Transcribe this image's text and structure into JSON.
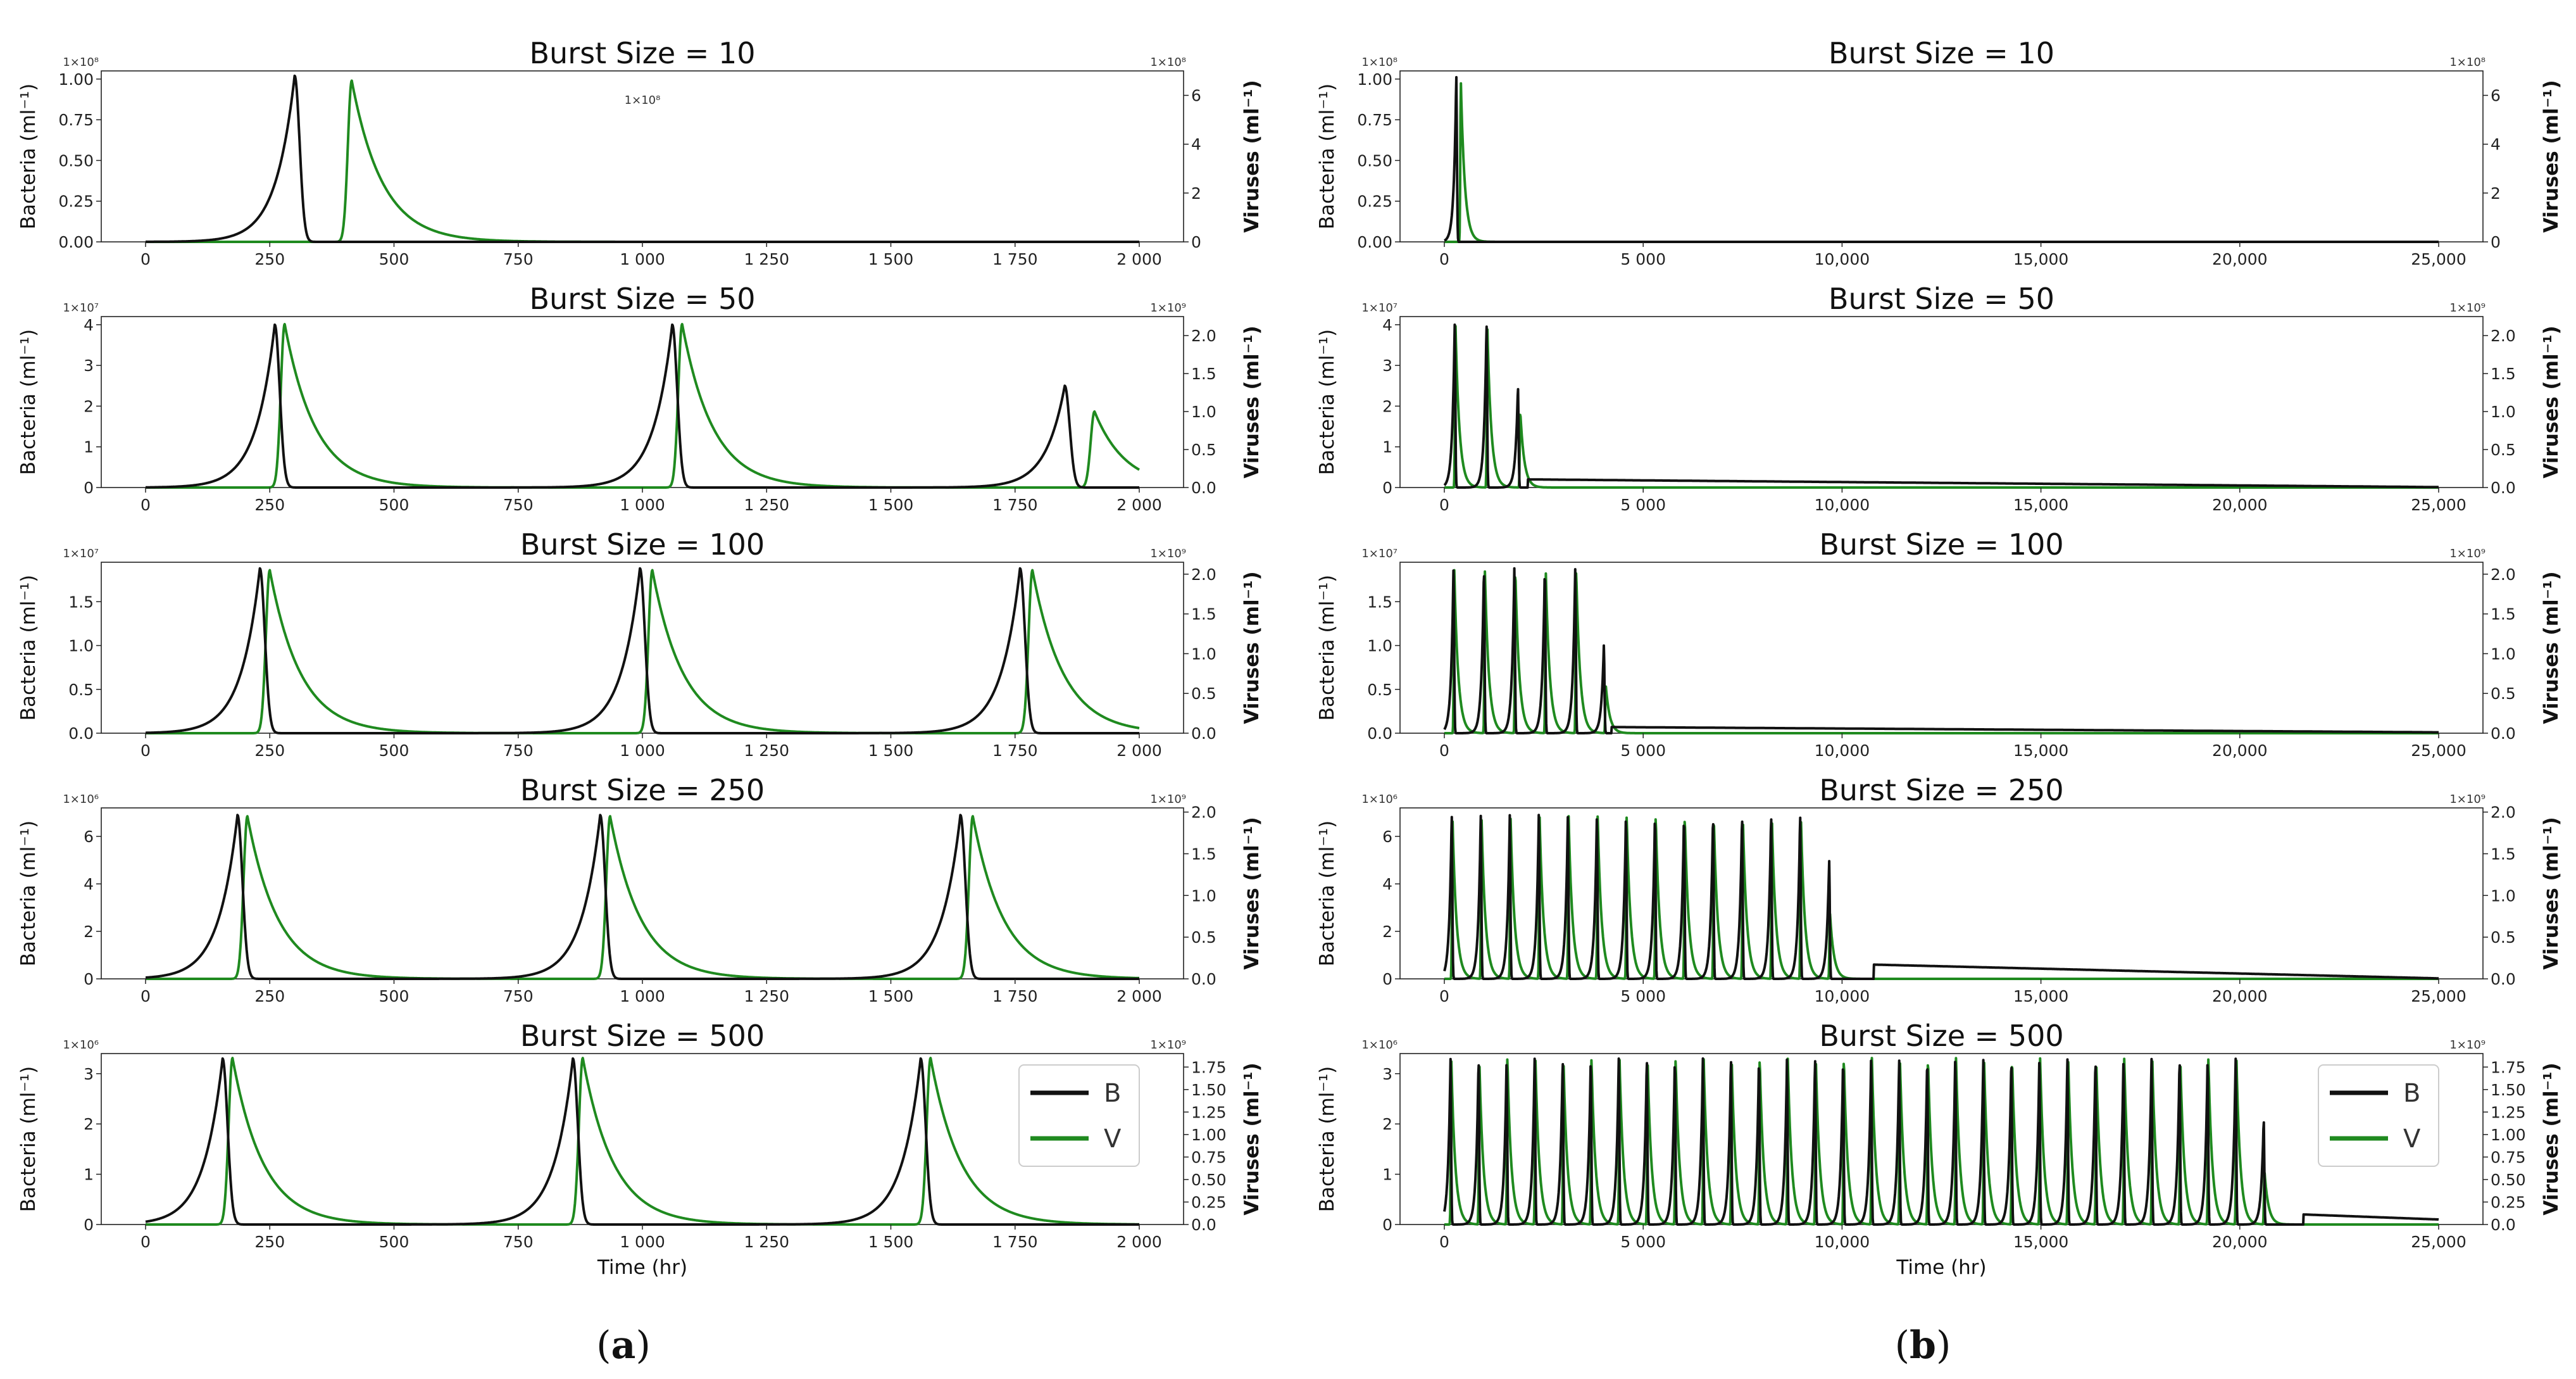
{
  "colors": {
    "bacteria": "#111111",
    "virus": "#1f8a1f"
  },
  "panels": [
    {
      "label_left": "(",
      "label_letter": "a",
      "label_right": ")",
      "xlabel": "Time (hr)"
    },
    {
      "label_left": "(",
      "label_letter": "b",
      "label_right": ")",
      "xlabel": "Time (hr)"
    }
  ],
  "legend": {
    "b_label": "B",
    "v_label": "V"
  },
  "chart_data": [
    {
      "type": "line",
      "panel": "a",
      "title": "Burst Size = 10",
      "xlabel": "",
      "ylabel": "Bacteria (ml⁻¹)",
      "ylabel_right": "Viruses (ml⁻¹)",
      "xlim": [
        0,
        2000
      ],
      "ylim": [
        0,
        1.05
      ],
      "ylim_right": [
        0,
        7
      ],
      "y_exp": "1×10⁸",
      "y2_exp": "1×10⁸",
      "annotation": "1×10⁸",
      "xticks": [
        "0",
        "250",
        "500",
        "750",
        "1 000",
        "1 250",
        "1 500",
        "1 750",
        "2 000"
      ],
      "xtick_values": [
        0,
        250,
        500,
        750,
        1000,
        1250,
        1500,
        1750,
        2000
      ],
      "yticks": [
        "0.00",
        "0.25",
        "0.50",
        "0.75",
        "1.00"
      ],
      "ytick_values": [
        0,
        0.25,
        0.5,
        0.75,
        1.0
      ],
      "y2ticks": [
        "0",
        "2",
        "4",
        "6"
      ],
      "y2tick_values": [
        0,
        2,
        4,
        6
      ],
      "series": [
        {
          "name": "B",
          "peaks": [
            {
              "t": 300,
              "h": 1.02
            }
          ]
        },
        {
          "name": "V",
          "peaks": [
            {
              "t": 415,
              "h": 6.6
            }
          ]
        }
      ]
    },
    {
      "type": "line",
      "panel": "a",
      "title": "Burst Size = 50",
      "ylabel": "Bacteria (ml⁻¹)",
      "ylabel_right": "Viruses (ml⁻¹)",
      "xlim": [
        0,
        2000
      ],
      "ylim": [
        0,
        4.2
      ],
      "ylim_right": [
        0,
        2.25
      ],
      "y_exp": "1×10⁷",
      "y2_exp": "1×10⁹",
      "xticks": [
        "0",
        "250",
        "500",
        "750",
        "1 000",
        "1 250",
        "1 500",
        "1 750",
        "2 000"
      ],
      "xtick_values": [
        0,
        250,
        500,
        750,
        1000,
        1250,
        1500,
        1750,
        2000
      ],
      "yticks": [
        "0",
        "1",
        "2",
        "3",
        "4"
      ],
      "ytick_values": [
        0,
        1,
        2,
        3,
        4
      ],
      "y2ticks": [
        "0.0",
        "0.5",
        "1.0",
        "1.5",
        "2.0"
      ],
      "y2tick_values": [
        0,
        0.5,
        1.0,
        1.5,
        2.0
      ],
      "series": [
        {
          "name": "B",
          "peaks": [
            {
              "t": 260,
              "h": 4.0
            },
            {
              "t": 1060,
              "h": 4.0
            },
            {
              "t": 1850,
              "h": 2.5
            }
          ]
        },
        {
          "name": "V",
          "peaks": [
            {
              "t": 280,
              "h": 2.15
            },
            {
              "t": 1080,
              "h": 2.15
            },
            {
              "t": 1910,
              "h": 1.0
            }
          ]
        }
      ]
    },
    {
      "type": "line",
      "panel": "a",
      "title": "Burst Size = 100",
      "ylabel": "Bacteria (ml⁻¹)",
      "ylabel_right": "Viruses (ml⁻¹)",
      "xlim": [
        0,
        2000
      ],
      "ylim": [
        0,
        1.95
      ],
      "ylim_right": [
        0,
        2.15
      ],
      "y_exp": "1×10⁷",
      "y2_exp": "1×10⁹",
      "xticks": [
        "0",
        "250",
        "500",
        "750",
        "1 000",
        "1 250",
        "1 500",
        "1 750",
        "2 000"
      ],
      "xtick_values": [
        0,
        250,
        500,
        750,
        1000,
        1250,
        1500,
        1750,
        2000
      ],
      "yticks": [
        "0.0",
        "0.5",
        "1.0",
        "1.5"
      ],
      "ytick_values": [
        0,
        0.5,
        1.0,
        1.5
      ],
      "y2ticks": [
        "0.0",
        "0.5",
        "1.0",
        "1.5",
        "2.0"
      ],
      "y2tick_values": [
        0,
        0.5,
        1.0,
        1.5,
        2.0
      ],
      "series": [
        {
          "name": "B",
          "peaks": [
            {
              "t": 230,
              "h": 1.88
            },
            {
              "t": 995,
              "h": 1.88
            },
            {
              "t": 1760,
              "h": 1.88
            }
          ]
        },
        {
          "name": "V",
          "peaks": [
            {
              "t": 250,
              "h": 2.05
            },
            {
              "t": 1020,
              "h": 2.05
            },
            {
              "t": 1785,
              "h": 2.05
            }
          ]
        }
      ]
    },
    {
      "type": "line",
      "panel": "a",
      "title": "Burst Size = 250",
      "ylabel": "Bacteria (ml⁻¹)",
      "ylabel_right": "Viruses (ml⁻¹)",
      "xlim": [
        0,
        2000
      ],
      "ylim": [
        0,
        7.2
      ],
      "ylim_right": [
        0,
        2.05
      ],
      "y_exp": "1×10⁶",
      "y2_exp": "1×10⁹",
      "xticks": [
        "0",
        "250",
        "500",
        "750",
        "1 000",
        "1 250",
        "1 500",
        "1 750",
        "2 000"
      ],
      "xtick_values": [
        0,
        250,
        500,
        750,
        1000,
        1250,
        1500,
        1750,
        2000
      ],
      "yticks": [
        "0",
        "2",
        "4",
        "6"
      ],
      "ytick_values": [
        0,
        2,
        4,
        6
      ],
      "y2ticks": [
        "0.0",
        "0.5",
        "1.0",
        "1.5",
        "2.0"
      ],
      "y2tick_values": [
        0,
        0.5,
        1.0,
        1.5,
        2.0
      ],
      "series": [
        {
          "name": "B",
          "peaks": [
            {
              "t": 185,
              "h": 6.9
            },
            {
              "t": 915,
              "h": 6.9
            },
            {
              "t": 1640,
              "h": 6.9
            }
          ]
        },
        {
          "name": "V",
          "peaks": [
            {
              "t": 205,
              "h": 1.95
            },
            {
              "t": 935,
              "h": 1.95
            },
            {
              "t": 1665,
              "h": 1.95
            }
          ]
        }
      ]
    },
    {
      "type": "line",
      "panel": "a",
      "title": "Burst Size = 500",
      "ylabel": "Bacteria (ml⁻¹)",
      "ylabel_right": "Viruses (ml⁻¹)",
      "xlabel": "Time (hr)",
      "xlim": [
        0,
        2000
      ],
      "ylim": [
        0,
        3.4
      ],
      "ylim_right": [
        0,
        1.9
      ],
      "y_exp": "1×10⁶",
      "y2_exp": "1×10⁹",
      "xticks": [
        "0",
        "250",
        "500",
        "750",
        "1 000",
        "1 250",
        "1 500",
        "1 750",
        "2 000"
      ],
      "xtick_values": [
        0,
        250,
        500,
        750,
        1000,
        1250,
        1500,
        1750,
        2000
      ],
      "yticks": [
        "0",
        "1",
        "2",
        "3"
      ],
      "ytick_values": [
        0,
        1,
        2,
        3
      ],
      "y2ticks": [
        "0.0",
        "0.25",
        "0.50",
        "0.75",
        "1.00",
        "1.25",
        "1.50",
        "1.75"
      ],
      "y2tick_values": [
        0,
        0.25,
        0.5,
        0.75,
        1.0,
        1.25,
        1.5,
        1.75
      ],
      "legend": [
        "B",
        "V"
      ],
      "series": [
        {
          "name": "B",
          "peaks": [
            {
              "t": 155,
              "h": 3.3
            },
            {
              "t": 860,
              "h": 3.3
            },
            {
              "t": 1560,
              "h": 3.3
            }
          ]
        },
        {
          "name": "V",
          "peaks": [
            {
              "t": 175,
              "h": 1.85
            },
            {
              "t": 880,
              "h": 1.85
            },
            {
              "t": 1580,
              "h": 1.85
            }
          ]
        }
      ]
    },
    {
      "type": "line",
      "panel": "b",
      "title": "Burst Size = 10",
      "ylabel": "Bacteria (ml⁻¹)",
      "ylabel_right": "Viruses (ml⁻¹)",
      "xlim": [
        0,
        25000
      ],
      "ylim": [
        0,
        1.05
      ],
      "ylim_right": [
        0,
        7
      ],
      "y_exp": "1×10⁸",
      "y2_exp": "1×10⁸",
      "xticks": [
        "0",
        "5 000",
        "10,000",
        "15,000",
        "20,000",
        "25,000"
      ],
      "xtick_values": [
        0,
        5000,
        10000,
        15000,
        20000,
        25000
      ],
      "yticks": [
        "0.00",
        "0.25",
        "0.50",
        "0.75",
        "1.00"
      ],
      "ytick_values": [
        0,
        0.25,
        0.5,
        0.75,
        1.0
      ],
      "y2ticks": [
        "0",
        "2",
        "4",
        "6"
      ],
      "y2tick_values": [
        0,
        2,
        4,
        6
      ],
      "series": [
        {
          "name": "B",
          "peaks": [
            {
              "t": 300,
              "h": 1.02
            }
          ]
        },
        {
          "name": "V",
          "peaks": [
            {
              "t": 415,
              "h": 6.6
            }
          ]
        }
      ]
    },
    {
      "type": "line",
      "panel": "b",
      "title": "Burst Size = 50",
      "ylabel": "Bacteria (ml⁻¹)",
      "ylabel_right": "Viruses (ml⁻¹)",
      "xlim": [
        0,
        25000
      ],
      "ylim": [
        0,
        4.2
      ],
      "ylim_right": [
        0,
        2.25
      ],
      "y_exp": "1×10⁷",
      "y2_exp": "1×10⁹",
      "xticks": [
        "0",
        "5 000",
        "10,000",
        "15,000",
        "20,000",
        "25,000"
      ],
      "xtick_values": [
        0,
        5000,
        10000,
        15000,
        20000,
        25000
      ],
      "yticks": [
        "0",
        "1",
        "2",
        "3",
        "4"
      ],
      "ytick_values": [
        0,
        1,
        2,
        3,
        4
      ],
      "y2ticks": [
        "0.0",
        "0.5",
        "1.0",
        "1.5",
        "2.0"
      ],
      "y2tick_values": [
        0,
        0.5,
        1.0,
        1.5,
        2.0
      ],
      "tail": {
        "t0": 2100,
        "b0": 0.2,
        "t1": 25000,
        "b1": 0.01
      },
      "series": [
        {
          "name": "B",
          "peaks": [
            {
              "t": 260,
              "h": 4.0
            },
            {
              "t": 1060,
              "h": 4.0
            },
            {
              "t": 1850,
              "h": 2.5
            }
          ]
        },
        {
          "name": "V",
          "peaks": [
            {
              "t": 280,
              "h": 2.15
            },
            {
              "t": 1080,
              "h": 2.15
            },
            {
              "t": 1910,
              "h": 1.0
            }
          ]
        }
      ]
    },
    {
      "type": "line",
      "panel": "b",
      "title": "Burst Size = 100",
      "ylabel": "Bacteria (ml⁻¹)",
      "ylabel_right": "Viruses (ml⁻¹)",
      "xlim": [
        0,
        25000
      ],
      "ylim": [
        0,
        1.95
      ],
      "ylim_right": [
        0,
        2.15
      ],
      "y_exp": "1×10⁷",
      "y2_exp": "1×10⁹",
      "xticks": [
        "0",
        "5 000",
        "10,000",
        "15,000",
        "20,000",
        "25,000"
      ],
      "xtick_values": [
        0,
        5000,
        10000,
        15000,
        20000,
        25000
      ],
      "yticks": [
        "0.0",
        "0.5",
        "1.0",
        "1.5"
      ],
      "ytick_values": [
        0,
        0.5,
        1.0,
        1.5
      ],
      "y2ticks": [
        "0.0",
        "0.5",
        "1.0",
        "1.5",
        "2.0"
      ],
      "y2tick_values": [
        0,
        0.5,
        1.0,
        1.5,
        2.0
      ],
      "tail": {
        "t0": 4200,
        "b0": 0.07,
        "t1": 25000,
        "b1": 0.01
      },
      "series": [
        {
          "name": "B",
          "peaks": [
            {
              "t": 230,
              "h": 1.88
            },
            {
              "t": 995,
              "h": 1.88
            },
            {
              "t": 1760,
              "h": 1.88
            },
            {
              "t": 2525,
              "h": 1.88
            },
            {
              "t": 3290,
              "h": 1.88
            },
            {
              "t": 4010,
              "h": 1.0
            }
          ]
        },
        {
          "name": "V",
          "peaks": [
            {
              "t": 250,
              "h": 2.05
            },
            {
              "t": 1020,
              "h": 2.05
            },
            {
              "t": 1785,
              "h": 2.05
            },
            {
              "t": 2550,
              "h": 2.05
            },
            {
              "t": 3315,
              "h": 2.05
            },
            {
              "t": 4060,
              "h": 0.6
            }
          ]
        }
      ]
    },
    {
      "type": "line",
      "panel": "b",
      "title": "Burst Size = 250",
      "ylabel": "Bacteria (ml⁻¹)",
      "ylabel_right": "Viruses (ml⁻¹)",
      "xlim": [
        0,
        25000
      ],
      "ylim": [
        0,
        7.2
      ],
      "ylim_right": [
        0,
        2.05
      ],
      "y_exp": "1×10⁶",
      "y2_exp": "1×10⁹",
      "xticks": [
        "0",
        "5 000",
        "10,000",
        "15,000",
        "20,000",
        "25,000"
      ],
      "xtick_values": [
        0,
        5000,
        10000,
        15000,
        20000,
        25000
      ],
      "yticks": [
        "0",
        "2",
        "4",
        "6"
      ],
      "ytick_values": [
        0,
        2,
        4,
        6
      ],
      "y2ticks": [
        "0.0",
        "0.5",
        "1.0",
        "1.5",
        "2.0"
      ],
      "y2tick_values": [
        0,
        0.5,
        1.0,
        1.5,
        2.0
      ],
      "periodic": {
        "start_b": 185,
        "lag_v": 20,
        "period": 730,
        "count": 14,
        "b_h": 6.9,
        "v_h": 1.95,
        "last_b_h": 5.0,
        "last_v_h": 0.8
      },
      "tail": {
        "t0": 10800,
        "b0": 0.6,
        "t1": 25000,
        "b1": 0.02
      },
      "series": [
        {
          "name": "B"
        },
        {
          "name": "V"
        }
      ]
    },
    {
      "type": "line",
      "panel": "b",
      "title": "Burst Size = 500",
      "ylabel": "Bacteria (ml⁻¹)",
      "ylabel_right": "Viruses (ml⁻¹)",
      "xlabel": "Time (hr)",
      "xlim": [
        0,
        25000
      ],
      "ylim": [
        0,
        3.4
      ],
      "ylim_right": [
        0,
        1.9
      ],
      "y_exp": "1×10⁶",
      "y2_exp": "1×10⁹",
      "xticks": [
        "0",
        "5 000",
        "10,000",
        "15,000",
        "20,000",
        "25,000"
      ],
      "xtick_values": [
        0,
        5000,
        10000,
        15000,
        20000,
        25000
      ],
      "yticks": [
        "0",
        "1",
        "2",
        "3"
      ],
      "ytick_values": [
        0,
        1,
        2,
        3
      ],
      "y2ticks": [
        "0.0",
        "0.25",
        "0.50",
        "0.75",
        "1.00",
        "1.25",
        "1.50",
        "1.75"
      ],
      "y2tick_values": [
        0,
        0.25,
        0.5,
        0.75,
        1.0,
        1.25,
        1.5,
        1.75
      ],
      "legend": [
        "B",
        "V"
      ],
      "periodic": {
        "start_b": 155,
        "lag_v": 20,
        "period": 705,
        "count": 30,
        "b_h": 3.3,
        "v_h": 1.85,
        "last_b_h": 2.1,
        "last_v_h": 0.6
      },
      "tail": {
        "t0": 21600,
        "b0": 0.2,
        "t1": 25000,
        "b1": 0.1
      },
      "series": [
        {
          "name": "B"
        },
        {
          "name": "V"
        }
      ]
    }
  ]
}
